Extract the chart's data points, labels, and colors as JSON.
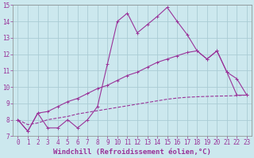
{
  "xlabel": "Windchill (Refroidissement éolien,°C)",
  "xlim": [
    -0.5,
    23.5
  ],
  "ylim": [
    7,
    15
  ],
  "xticks": [
    0,
    1,
    2,
    3,
    4,
    5,
    6,
    7,
    8,
    9,
    10,
    11,
    12,
    13,
    14,
    15,
    16,
    17,
    18,
    19,
    20,
    21,
    22,
    23
  ],
  "yticks": [
    7,
    8,
    9,
    10,
    11,
    12,
    13,
    14,
    15
  ],
  "background_color": "#cce8ee",
  "line_color": "#993399",
  "grid_color": "#aaccd4",
  "line1_x": [
    0,
    1,
    2,
    3,
    4,
    5,
    6,
    7,
    8,
    9,
    10,
    11,
    12,
    13,
    14,
    15,
    16,
    17,
    18,
    19,
    20,
    21,
    22,
    23
  ],
  "line1_y": [
    8.0,
    7.3,
    8.4,
    7.5,
    7.5,
    8.0,
    7.5,
    8.0,
    8.8,
    11.4,
    14.0,
    14.5,
    13.3,
    13.8,
    14.3,
    14.85,
    14.0,
    13.2,
    12.2,
    11.7,
    12.2,
    10.9,
    9.5,
    9.5
  ],
  "line2_x": [
    0,
    1,
    2,
    3,
    4,
    5,
    6,
    7,
    8,
    9,
    10,
    11,
    12,
    13,
    14,
    15,
    16,
    17,
    18,
    19,
    20,
    21,
    22,
    23
  ],
  "line2_y": [
    8.0,
    7.3,
    8.4,
    8.5,
    8.8,
    9.1,
    9.3,
    9.6,
    9.9,
    10.1,
    10.4,
    10.7,
    10.9,
    11.2,
    11.5,
    11.7,
    11.9,
    12.1,
    12.2,
    11.7,
    12.2,
    10.9,
    10.5,
    9.5
  ],
  "line3_x": [
    0,
    1,
    2,
    3,
    4,
    5,
    6,
    7,
    8,
    9,
    10,
    11,
    12,
    13,
    14,
    15,
    16,
    17,
    18,
    19,
    20,
    21,
    22,
    23
  ],
  "line3_y": [
    8.0,
    7.7,
    7.8,
    8.0,
    8.1,
    8.2,
    8.35,
    8.45,
    8.55,
    8.65,
    8.75,
    8.85,
    8.95,
    9.05,
    9.15,
    9.25,
    9.32,
    9.37,
    9.4,
    9.42,
    9.44,
    9.45,
    9.47,
    9.5
  ],
  "tick_fontsize": 5.5,
  "xlabel_fontsize": 6.5
}
